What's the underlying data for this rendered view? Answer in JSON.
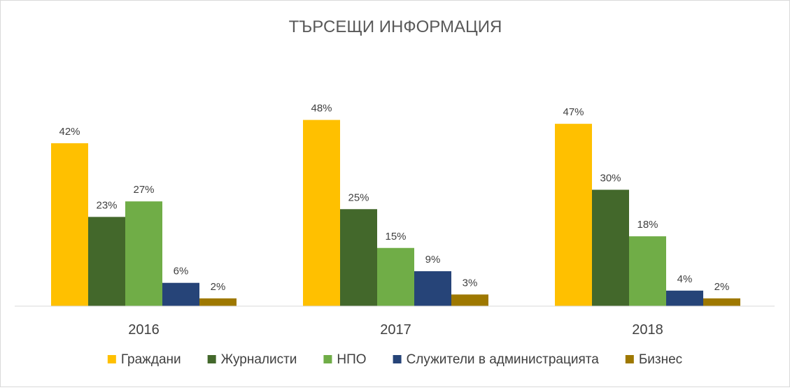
{
  "chart_data": {
    "type": "bar",
    "title": "ТЪРСЕЩИ ИНФОРМАЦИЯ",
    "categories": [
      "2016",
      "2017",
      "2018"
    ],
    "value_suffix": "%",
    "ylim": [
      0,
      55
    ],
    "grid": false,
    "legend_position": "bottom",
    "series": [
      {
        "name": "Граждани",
        "color": "#FFC000",
        "values": [
          42,
          48,
          47
        ]
      },
      {
        "name": "Журналисти",
        "color": "#43682B",
        "values": [
          23,
          25,
          30
        ]
      },
      {
        "name": "НПО",
        "color": "#70AD47",
        "values": [
          27,
          15,
          18
        ]
      },
      {
        "name": "Служители в администрацията",
        "color": "#264478",
        "values": [
          6,
          9,
          4
        ]
      },
      {
        "name": "Бизнес",
        "color": "#9E7800",
        "values": [
          2,
          3,
          2
        ]
      }
    ]
  }
}
